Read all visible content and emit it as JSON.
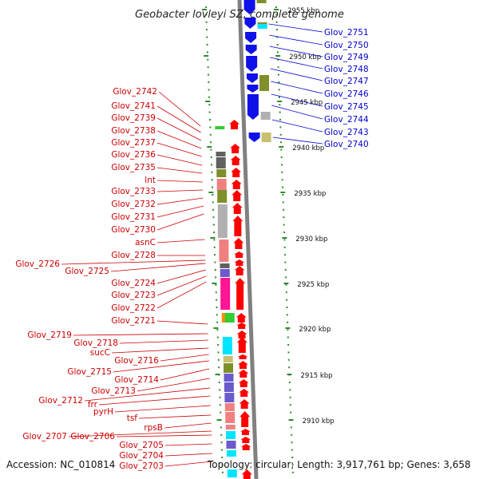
{
  "title": "Geobacter lovleyi SZ, complete genome",
  "accession": "Accession: NC_010814",
  "topology": "Topology: circular; Length: 3,917,761 bp; Genes: 3,658",
  "colors": {
    "forward_gene": "#ff0000",
    "reverse_gene": "#1010e8",
    "backbone": "#808080",
    "tick": "#2e8b2e",
    "forward_label": "#cc0000",
    "reverse_label": "#0000cc",
    "cog_olive": "#7f8f2a",
    "cog_pink": "#f08080",
    "cog_gray": "#b0b0b0",
    "cog_dark_gray": "#606060",
    "cog_magenta": "#ff1493",
    "cog_cyan": "#00e5ff",
    "cog_slate": "#6a5acd",
    "cog_khaki": "#c8c070",
    "cog_orange": "#ff8c00",
    "cog_green": "#32cd32"
  },
  "scale_labels": [
    "2955 kbp",
    "2950 kbp",
    "2945 kbp",
    "2940 kbp",
    "2935 kbp",
    "2930 kbp",
    "2925 kbp",
    "2920 kbp",
    "2915 kbp",
    "2910 kbp"
  ],
  "forward_labels": [
    "Glov_2742",
    "Glov_2741",
    "Glov_2739",
    "Glov_2738",
    "Glov_2737",
    "Glov_2736",
    "Glov_2735",
    "lnt",
    "Glov_2733",
    "Glov_2732",
    "Glov_2731",
    "Glov_2730",
    "asnC",
    "Glov_2728",
    "Glov_2726",
    "Glov_2725",
    "Glov_2724",
    "Glov_2723",
    "Glov_2722",
    "Glov_2721",
    "Glov_2719",
    "Glov_2718",
    "sucC",
    "Glov_2716",
    "Glov_2715",
    "Glov_2714",
    "Glov_2713",
    "Glov_2712",
    "frr",
    "pyrH",
    "tsf",
    "rpsB",
    "Glov_2707",
    "Glov_2706",
    "Glov_2705",
    "Glov_2704",
    "Glov_2703"
  ],
  "reverse_labels": [
    "Glov_2751",
    "Glov_2750",
    "Glov_2749",
    "Glov_2748",
    "Glov_2747",
    "Glov_2746",
    "Glov_2745",
    "Glov_2744",
    "Glov_2743",
    "Glov_2740"
  ]
}
